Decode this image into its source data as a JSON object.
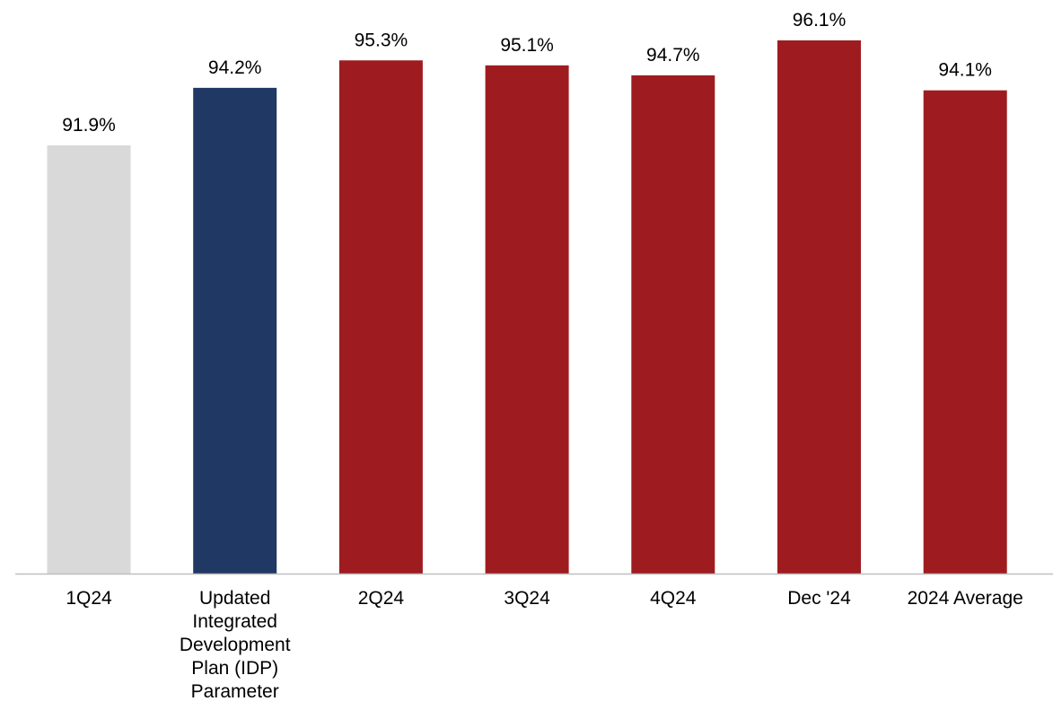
{
  "chart_data": {
    "type": "bar",
    "title": "",
    "xlabel": "",
    "ylabel": "",
    "grid": false,
    "legend": "none",
    "value_suffix": "%",
    "categories": [
      "1Q24",
      "Updated Integrated Development Plan (IDP) Parameter",
      "2Q24",
      "3Q24",
      "4Q24",
      "Dec '24",
      "2024 Average"
    ],
    "category_lines": [
      [
        "1Q24"
      ],
      [
        "Updated",
        "Integrated",
        "Development",
        "Plan (IDP)",
        "Parameter"
      ],
      [
        "2Q24"
      ],
      [
        "3Q24"
      ],
      [
        "4Q24"
      ],
      [
        "Dec '24"
      ],
      [
        "2024 Average"
      ]
    ],
    "values": [
      91.9,
      94.2,
      95.3,
      95.1,
      94.7,
      96.1,
      94.1
    ],
    "labels": [
      "91.9%",
      "94.2%",
      "95.3%",
      "95.1%",
      "94.7%",
      "96.1%",
      "94.1%"
    ],
    "bar_colors": [
      "#d9d9d9",
      "#203864",
      "#9e1c20",
      "#9e1c20",
      "#9e1c20",
      "#9e1c20",
      "#9e1c20"
    ],
    "axis_color": "#bfbfbf",
    "ylim": [
      74.75,
      96.1
    ]
  }
}
